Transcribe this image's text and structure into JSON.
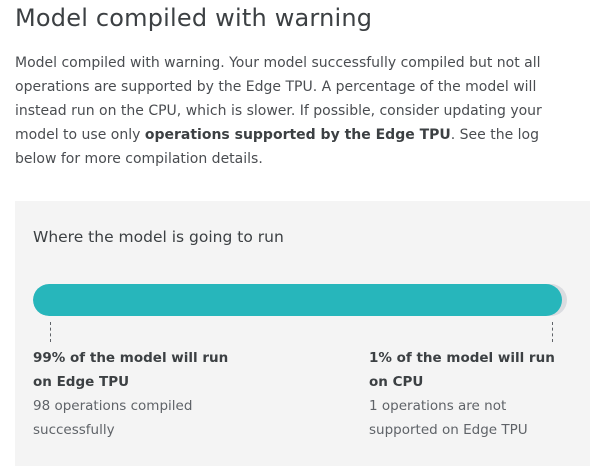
{
  "header": {
    "title": "Model compiled with warning"
  },
  "description": {
    "text_before": "Model compiled with warning. Your model successfully compiled but not all operations are supported by the Edge TPU. A percentage of the model will instead run on the CPU, which is slower. If possible, consider updating your model to use only ",
    "link_text": "operations supported by the Edge TPU",
    "text_after": ". See the log below for more compilation details."
  },
  "run_panel": {
    "title": "Where the model is going to run",
    "edge_tpu_percent": 99,
    "edge_tpu": {
      "percent_label": "99% of the model will run on Edge TPU",
      "ops_label": "98 operations compiled successfully"
    },
    "cpu": {
      "percent_label": "1% of the model will run on CPU",
      "ops_label": "1 operations are not supported on Edge TPU"
    }
  },
  "colors": {
    "bar_fill": "#27b6bb",
    "bar_track": "#dadce0",
    "panel_bg": "#f4f4f4"
  }
}
